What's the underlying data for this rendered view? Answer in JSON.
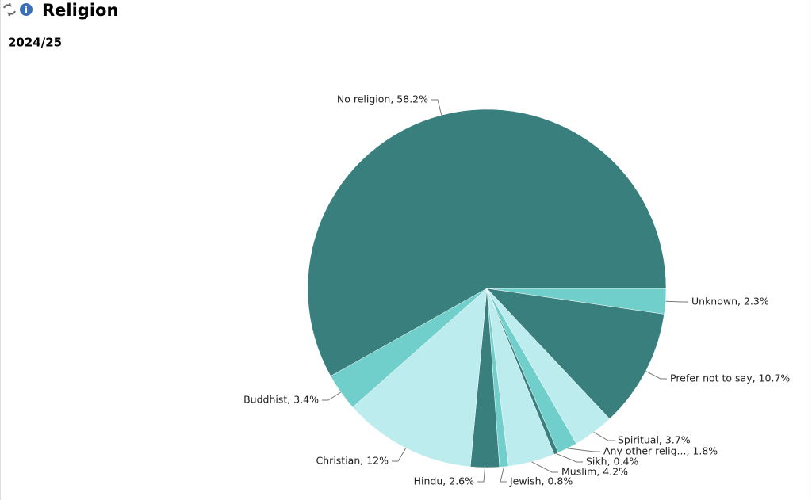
{
  "chart_data": {
    "type": "pie",
    "title": "Religion",
    "subtitle": "2024/25",
    "values": [
      2.3,
      10.7,
      3.7,
      1.8,
      0.4,
      4.2,
      0.8,
      2.6,
      12,
      3.4,
      58.2
    ],
    "value_labels": [
      "Unknown, 2.3%",
      "Prefer not to say, 10.7%",
      "Spiritual, 3.7%",
      "Any other relig..., 1.8%",
      "Sikh, 0.4%",
      "Muslim, 4.2%",
      "Jewish, 0.8%",
      "Hindu, 2.6%",
      "Christian, 12%",
      "Buddhist, 3.4%",
      "No religion, 58.2%"
    ],
    "colors": [
      "#70cfcb",
      "#387f7d",
      "#bdecee",
      "#70cfcb",
      "#387f7d",
      "#bdecee",
      "#70cfcb",
      "#387f7d",
      "#bdecee",
      "#70cfcb",
      "#387f7d"
    ]
  }
}
